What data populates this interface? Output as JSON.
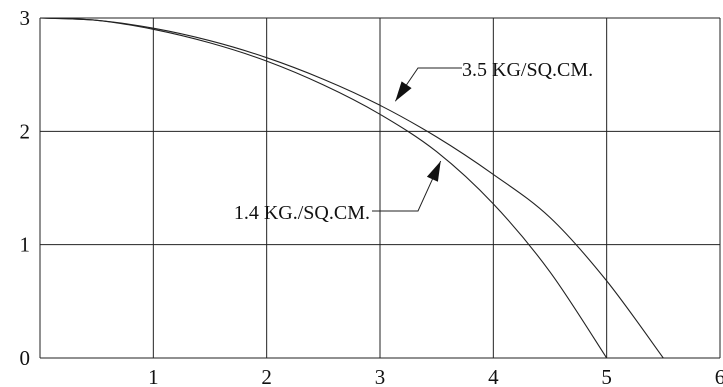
{
  "chart_data": {
    "type": "line",
    "title": "",
    "xlabel": "",
    "ylabel": "",
    "xlim": [
      0,
      6
    ],
    "ylim": [
      0,
      3
    ],
    "grid": true,
    "xticks": [
      "1",
      "2",
      "3",
      "4",
      "5",
      "6"
    ],
    "yticks": [
      "0",
      "1",
      "2",
      "3"
    ],
    "series": [
      {
        "name": "3.5 KG/SQ.CM.",
        "x": [
          0,
          0.5,
          1.0,
          1.5,
          2.0,
          2.5,
          3.0,
          3.5,
          4.0,
          4.5,
          5.0,
          5.5
        ],
        "y": [
          3.0,
          2.98,
          2.91,
          2.8,
          2.65,
          2.46,
          2.23,
          1.95,
          1.62,
          1.24,
          0.68,
          0.0
        ]
      },
      {
        "name": "1.4 KG./SQ.CM.",
        "x": [
          0,
          0.5,
          1.0,
          1.5,
          2.0,
          2.5,
          3.0,
          3.5,
          4.0,
          4.5,
          5.0
        ],
        "y": [
          3.0,
          2.98,
          2.9,
          2.78,
          2.62,
          2.41,
          2.15,
          1.82,
          1.36,
          0.76,
          0.0
        ]
      }
    ],
    "annotations": [
      {
        "text": "3.5 KG/SQ.CM.",
        "points_to": [
          3.1,
          2.23
        ]
      },
      {
        "text": "1.4 KG./SQ.CM.",
        "points_to": [
          3.5,
          1.72
        ]
      }
    ]
  }
}
